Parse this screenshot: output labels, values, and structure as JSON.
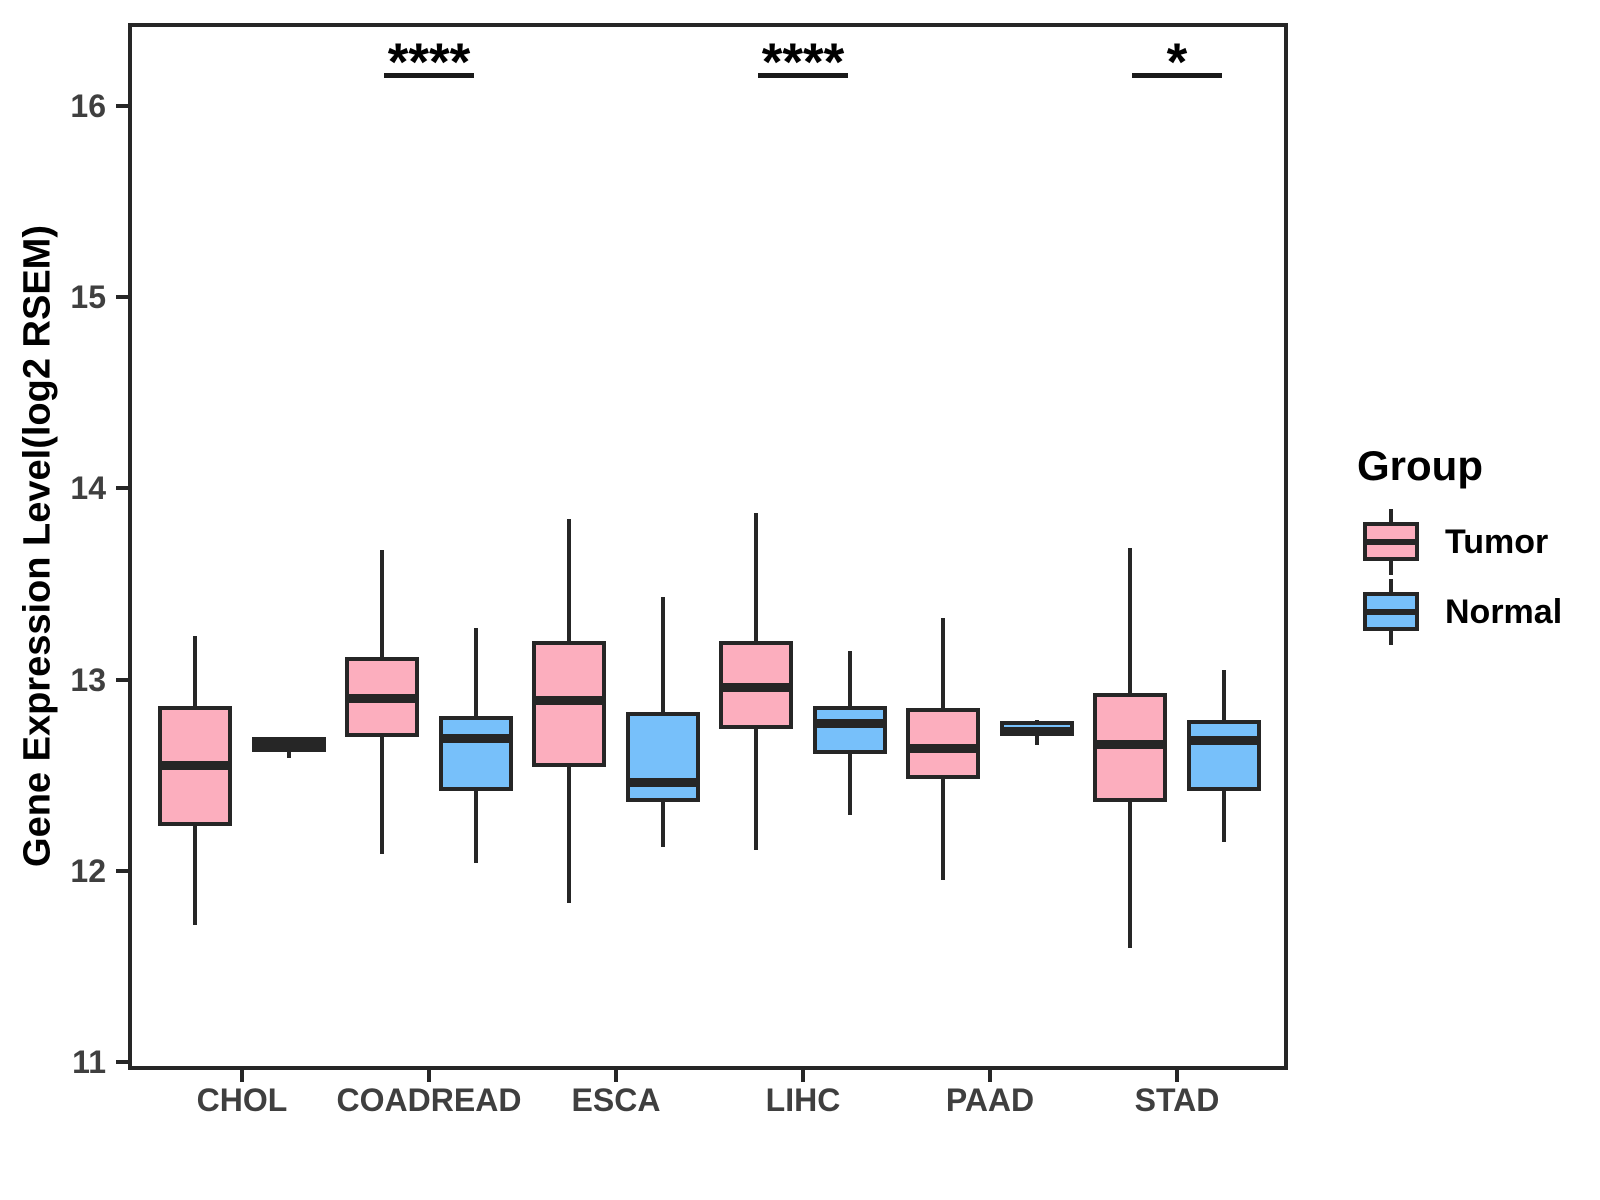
{
  "chart_data": {
    "type": "boxplot",
    "title": "",
    "xlabel": "",
    "ylabel": "Gene Expression Level(log2 RSEM)",
    "categories": [
      "CHOL",
      "COADREAD",
      "ESCA",
      "LIHC",
      "PAAD",
      "STAD"
    ],
    "yticks": [
      11,
      12,
      13,
      14,
      15,
      16
    ],
    "ylim": [
      11,
      16.45
    ],
    "grid": "off",
    "legend_position": "right",
    "series": [
      {
        "name": "Tumor",
        "color": "#FCAEBE",
        "boxes": [
          {
            "category": "CHOL",
            "min": 11.72,
            "q1": 12.23,
            "median": 12.55,
            "q3": 12.86,
            "max": 13.23
          },
          {
            "category": "COADREAD",
            "min": 12.09,
            "q1": 12.7,
            "median": 12.9,
            "q3": 13.12,
            "max": 13.68
          },
          {
            "category": "ESCA",
            "min": 11.83,
            "q1": 12.54,
            "median": 12.89,
            "q3": 13.2,
            "max": 13.84
          },
          {
            "category": "LIHC",
            "min": 12.11,
            "q1": 12.74,
            "median": 12.96,
            "q3": 13.2,
            "max": 13.87
          },
          {
            "category": "PAAD",
            "min": 11.95,
            "q1": 12.48,
            "median": 12.64,
            "q3": 12.85,
            "max": 13.32
          },
          {
            "category": "STAD",
            "min": 11.6,
            "q1": 12.36,
            "median": 12.66,
            "q3": 12.93,
            "max": 13.69
          }
        ]
      },
      {
        "name": "Normal",
        "color": "#77C0FA",
        "boxes": [
          {
            "category": "CHOL",
            "min": 12.59,
            "q1": 12.62,
            "median": 12.655,
            "q3": 12.7,
            "max": 12.7
          },
          {
            "category": "COADREAD",
            "min": 12.04,
            "q1": 12.42,
            "median": 12.69,
            "q3": 12.81,
            "max": 13.27
          },
          {
            "category": "ESCA",
            "min": 12.12,
            "q1": 12.36,
            "median": 12.46,
            "q3": 12.83,
            "max": 13.43
          },
          {
            "category": "LIHC",
            "min": 12.29,
            "q1": 12.61,
            "median": 12.77,
            "q3": 12.86,
            "max": 13.15
          },
          {
            "category": "PAAD",
            "min": 12.66,
            "q1": 12.705,
            "median": 12.73,
            "q3": 12.785,
            "max": 12.79
          },
          {
            "category": "STAD",
            "min": 12.15,
            "q1": 12.42,
            "median": 12.68,
            "q3": 12.79,
            "max": 13.05
          }
        ]
      }
    ],
    "significance": [
      {
        "category": "COADREAD",
        "label": "****",
        "y": 16.17
      },
      {
        "category": "LIHC",
        "label": "****",
        "y": 16.17
      },
      {
        "category": "STAD",
        "label": "*",
        "y": 16.17
      }
    ],
    "legend": {
      "title": "Group",
      "items": [
        {
          "label": "Tumor",
          "color": "#FCAEBE"
        },
        {
          "label": "Normal",
          "color": "#77C0FA"
        }
      ]
    }
  },
  "colors": {
    "box_border": "#262626",
    "axis_text": "#3f3f3f",
    "title_text": "#000000",
    "background": "#ffffff"
  }
}
